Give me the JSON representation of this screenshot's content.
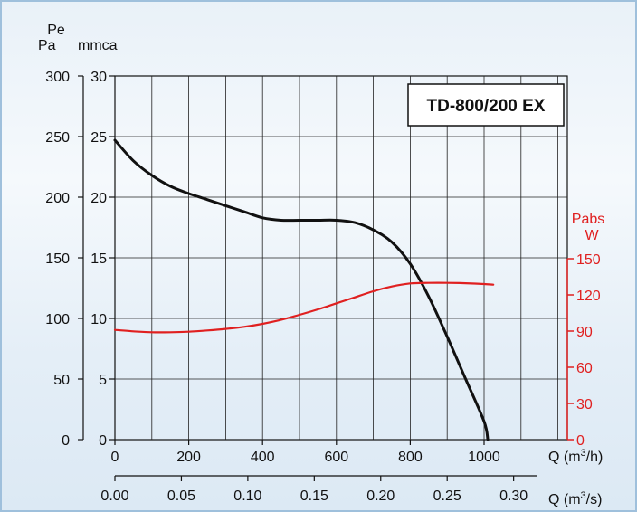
{
  "chart_data": {
    "type": "line",
    "model_label": "TD-800/200 EX",
    "left_axes": {
      "pa": {
        "unit": "Pa",
        "ticks": [
          0,
          50,
          100,
          150,
          200,
          250,
          300
        ],
        "range": [
          0,
          300
        ]
      },
      "mmca": {
        "title": "Pe",
        "unit": "mmca",
        "ticks": [
          0,
          5,
          10,
          15,
          20,
          25,
          30
        ],
        "range": [
          0,
          30
        ]
      }
    },
    "right_axis": {
      "title": "Pabs",
      "unit": "W",
      "ticks": [
        0,
        30,
        60,
        90,
        120,
        150
      ],
      "range": [
        0,
        150
      ],
      "color": "#e02020"
    },
    "x_axes": {
      "m3h": {
        "unit": "Q (m³/h)",
        "ticks": [
          0,
          200,
          400,
          600,
          800,
          1000
        ],
        "range": [
          0,
          1000
        ]
      },
      "m3s": {
        "unit": "Q (m³/s)",
        "ticks": [
          "0.00",
          "0.05",
          "0.10",
          "0.15",
          "0.20",
          "0.25",
          "0.30"
        ],
        "range": [
          0,
          0.3
        ]
      }
    },
    "grid": true,
    "series": [
      {
        "axis": "pressure_mmca",
        "color": "#111111",
        "x": [
          0,
          50,
          100,
          150,
          200,
          250,
          300,
          350,
          400,
          450,
          500,
          550,
          600,
          650,
          700,
          750,
          800,
          850,
          900,
          950,
          1000,
          1010
        ],
        "y": [
          24.7,
          23.0,
          21.8,
          20.9,
          20.3,
          19.8,
          19.3,
          18.8,
          18.3,
          18.1,
          18.1,
          18.1,
          18.1,
          17.9,
          17.3,
          16.3,
          14.5,
          11.8,
          8.5,
          5.0,
          1.5,
          0.0
        ]
      },
      {
        "axis": "power_w",
        "color": "#e02020",
        "x": [
          0,
          50,
          100,
          150,
          200,
          250,
          300,
          350,
          400,
          450,
          500,
          550,
          600,
          650,
          700,
          750,
          800,
          850,
          900,
          950,
          1000,
          1025
        ],
        "y": [
          91,
          89.8,
          89,
          89,
          89.5,
          90.5,
          91.8,
          93.5,
          96,
          99.3,
          103.5,
          108,
          113,
          118,
          123,
          127,
          129.5,
          130,
          130,
          129.7,
          129,
          128.5
        ]
      }
    ]
  }
}
